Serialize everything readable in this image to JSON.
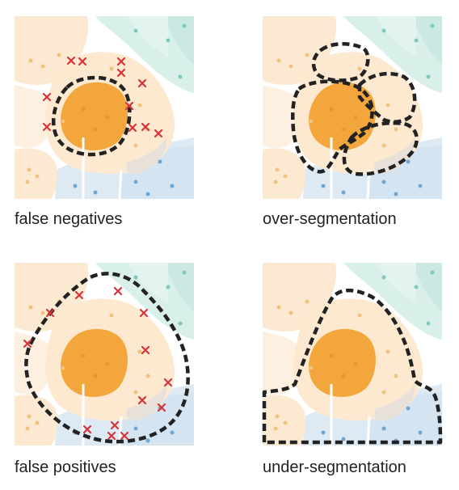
{
  "panels": [
    {
      "label": "false negatives"
    },
    {
      "label": "over-segmentation"
    },
    {
      "label": "false positives"
    },
    {
      "label": "under-segmentation"
    }
  ]
}
